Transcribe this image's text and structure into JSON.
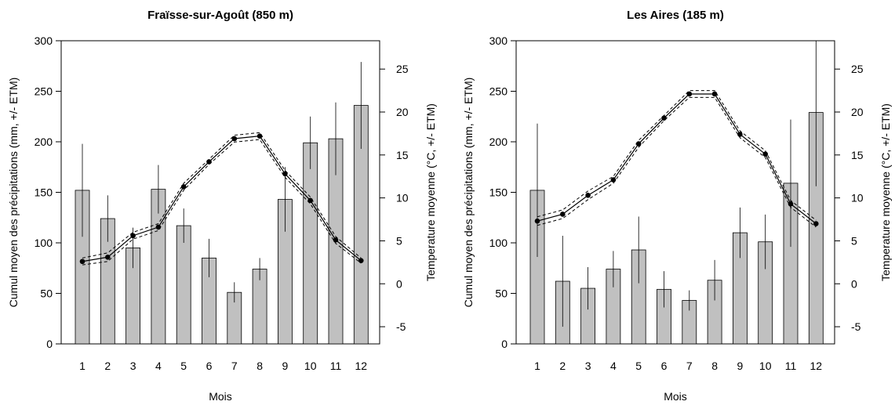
{
  "chart_data": [
    {
      "type": "bar",
      "title": "Fraïsse-sur-Agoût (850 m)",
      "xlabel": "Mois",
      "ylabel": "Cumul moyen des précipitations (mm, +/- ETM)",
      "ylabel_right": "Temperature moyenne (°C, +/- ETM)",
      "categories": [
        "1",
        "2",
        "3",
        "4",
        "5",
        "6",
        "7",
        "8",
        "9",
        "10",
        "11",
        "12"
      ],
      "ylim": [
        0,
        300
      ],
      "yticks": [
        0,
        50,
        100,
        150,
        200,
        250,
        300
      ],
      "y2lim": [
        -7,
        28.3
      ],
      "y2ticks": [
        -5,
        0,
        5,
        10,
        15,
        20,
        25
      ],
      "precip": {
        "values": [
          152,
          124,
          95,
          153,
          117,
          85,
          51,
          74,
          143,
          199,
          203,
          236
        ],
        "err": [
          46,
          23,
          20,
          24,
          17,
          19,
          10,
          11,
          32,
          26,
          36,
          43
        ]
      },
      "temp": {
        "values": [
          2.6,
          3.1,
          5.6,
          6.6,
          11.3,
          14.2,
          16.9,
          17.2,
          12.8,
          9.7,
          5.1,
          2.7
        ],
        "err": [
          0.4,
          0.5,
          0.4,
          0.4,
          0.4,
          0.3,
          0.4,
          0.4,
          0.4,
          0.4,
          0.4,
          0.3
        ]
      },
      "bar_color": "#c0c0c0"
    },
    {
      "type": "bar",
      "title": "Les Aires (185 m)",
      "xlabel": "Mois",
      "ylabel": "Cumul moyen des précipitations (mm, +/- ETM)",
      "ylabel_right": "Temperature moyenne (°C, +/- ETM)",
      "categories": [
        "1",
        "2",
        "3",
        "4",
        "5",
        "6",
        "7",
        "8",
        "9",
        "10",
        "11",
        "12"
      ],
      "ylim": [
        0,
        300
      ],
      "yticks": [
        0,
        50,
        100,
        150,
        200,
        250,
        300
      ],
      "y2lim": [
        -7,
        28.3
      ],
      "y2ticks": [
        -5,
        0,
        5,
        10,
        15,
        20,
        25
      ],
      "precip": {
        "values": [
          152,
          62,
          55,
          74,
          93,
          54,
          43,
          63,
          110,
          101,
          159,
          229
        ],
        "err": [
          66,
          45,
          21,
          18,
          33,
          18,
          10,
          20,
          25,
          27,
          63,
          73
        ]
      },
      "temp": {
        "values": [
          7.3,
          8.1,
          10.3,
          12.1,
          16.3,
          19.3,
          22.1,
          22.1,
          17.4,
          15.1,
          9.3,
          7.0
        ],
        "err": [
          0.5,
          0.5,
          0.5,
          0.4,
          0.4,
          0.3,
          0.4,
          0.4,
          0.4,
          0.4,
          0.4,
          0.4
        ]
      },
      "bar_color": "#c0c0c0"
    }
  ]
}
